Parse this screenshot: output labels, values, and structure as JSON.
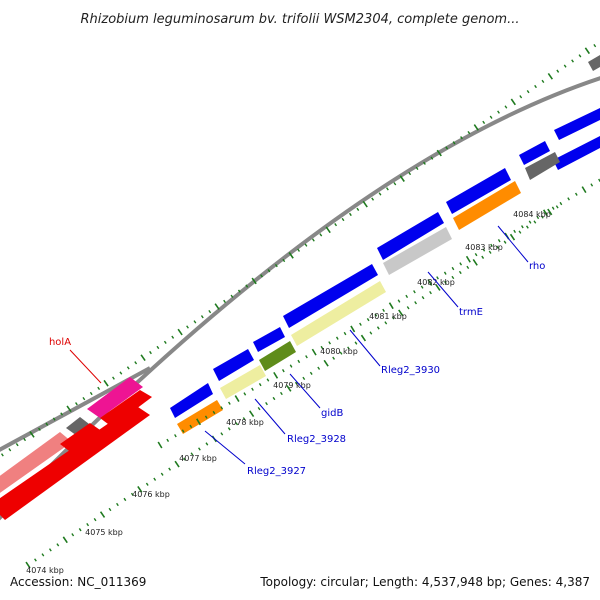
{
  "title": "Rhizobium leguminosarum bv. trifolii WSM2304, complete genom...",
  "footer": {
    "accession": "Accession: NC_011369",
    "summary": "Topology: circular; Length: 4,537,948 bp; Genes: 4,387"
  },
  "colors": {
    "backbone": "#888888",
    "tick": "#1f7a1f",
    "label_blue": "#0000cc",
    "label_red": "#dd0000",
    "blue_cds": "#0000ee",
    "orange_cds": "#ff8c00",
    "khaki_cds": "#eeeea0",
    "olive_cds": "#5f8c1a",
    "gray_cds": "#666666",
    "silver_cds": "#c8c8c8",
    "red_cds": "#ee0000",
    "salmon_cds": "#f08080",
    "pink_cds": "#ee1493"
  },
  "position_ticks": [
    {
      "label": "4074 kbp"
    },
    {
      "label": "4075 kbp"
    },
    {
      "label": "4076 kbp"
    },
    {
      "label": "4077 kbp"
    },
    {
      "label": "4078 kbp"
    },
    {
      "label": "4079 kbp"
    },
    {
      "label": "4080 kbp"
    },
    {
      "label": "4081 kbp"
    },
    {
      "label": "4082 kbp"
    },
    {
      "label": "4083 kbp"
    },
    {
      "label": "4084 kbp"
    }
  ],
  "gene_labels": [
    {
      "text": "holA",
      "color": "label_red"
    },
    {
      "text": "Rleg2_3927",
      "color": "label_blue"
    },
    {
      "text": "Rleg2_3928",
      "color": "label_blue"
    },
    {
      "text": "gidB",
      "color": "label_blue"
    },
    {
      "text": "Rleg2_3930",
      "color": "label_blue"
    },
    {
      "text": "trmE",
      "color": "label_blue"
    },
    {
      "text": "rho",
      "color": "label_blue"
    }
  ]
}
